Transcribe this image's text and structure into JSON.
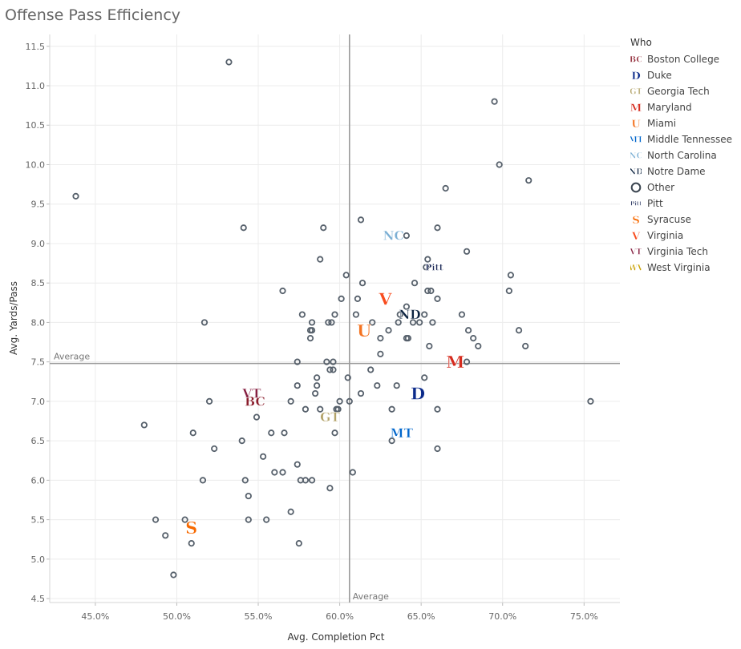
{
  "title": "Offense Pass Efficiency",
  "chart_data": {
    "type": "scatter",
    "title": "Offense Pass Efficiency",
    "xlabel": "Avg. Completion Pct",
    "ylabel": "Avg. Yards/Pass",
    "xlim": [
      0.422,
      0.772
    ],
    "ylim": [
      4.45,
      11.65
    ],
    "x_ticks": [
      0.45,
      0.5,
      0.55,
      0.6,
      0.65,
      0.7,
      0.75
    ],
    "x_tick_labels": [
      "45.0%",
      "50.0%",
      "55.0%",
      "60.0%",
      "65.0%",
      "70.0%",
      "75.0%"
    ],
    "y_ticks": [
      4.5,
      5.0,
      5.5,
      6.0,
      6.5,
      7.0,
      7.5,
      8.0,
      8.5,
      9.0,
      9.5,
      10.0,
      10.5,
      11.0,
      11.5
    ],
    "y_tick_labels": [
      "4.5",
      "5.0",
      "5.5",
      "6.0",
      "6.5",
      "7.0",
      "7.5",
      "8.0",
      "8.5",
      "9.0",
      "9.5",
      "10.0",
      "10.5",
      "11.0",
      "11.5"
    ],
    "reference_lines": {
      "x": {
        "value": 0.606,
        "label": "Average"
      },
      "y": {
        "value": 7.48,
        "label": "Average"
      }
    },
    "grid": true,
    "legend_title": "Who",
    "legend_position": "right",
    "legend": [
      {
        "name": "Boston College",
        "symbol": "BC",
        "color": "#8a1c2b"
      },
      {
        "name": "Duke",
        "symbol": "D",
        "color": "#0b2a8a"
      },
      {
        "name": "Georgia Tech",
        "symbol": "GT",
        "color": "#b3a369"
      },
      {
        "name": "Maryland",
        "symbol": "M",
        "color": "#d52b1e"
      },
      {
        "name": "Miami",
        "symbol": "U",
        "color": "#f47321"
      },
      {
        "name": "Middle Tennessee",
        "symbol": "MT",
        "color": "#0066cc"
      },
      {
        "name": "North Carolina",
        "symbol": "NC",
        "color": "#7bafd4"
      },
      {
        "name": "Notre Dame",
        "symbol": "ND",
        "color": "#0c2340"
      },
      {
        "name": "Other",
        "symbol": "circle",
        "color": "#3b4550"
      },
      {
        "name": "Pitt",
        "symbol": "Pitt",
        "color": "#1c2957"
      },
      {
        "name": "Syracuse",
        "symbol": "S",
        "color": "#f76900"
      },
      {
        "name": "Virginia",
        "symbol": "V",
        "color": "#f84c1e"
      },
      {
        "name": "Virginia Tech",
        "symbol": "VT",
        "color": "#861f41"
      },
      {
        "name": "West Virginia",
        "symbol": "WV",
        "color": "#c9a000"
      }
    ],
    "teams": [
      {
        "name": "Boston College",
        "x": 0.548,
        "y": 7.0
      },
      {
        "name": "Duke",
        "x": 0.648,
        "y": 7.1
      },
      {
        "name": "Georgia Tech",
        "x": 0.594,
        "y": 6.8
      },
      {
        "name": "Maryland",
        "x": 0.671,
        "y": 7.5
      },
      {
        "name": "Miami",
        "x": 0.615,
        "y": 7.9
      },
      {
        "name": "Middle Tennessee",
        "x": 0.638,
        "y": 6.6
      },
      {
        "name": "North Carolina",
        "x": 0.633,
        "y": 9.1
      },
      {
        "name": "Notre Dame",
        "x": 0.643,
        "y": 8.1
      },
      {
        "name": "Pitt",
        "x": 0.658,
        "y": 8.7
      },
      {
        "name": "Syracuse",
        "x": 0.509,
        "y": 5.4
      },
      {
        "name": "Virginia",
        "x": 0.628,
        "y": 8.3
      },
      {
        "name": "Virginia Tech",
        "x": 0.546,
        "y": 7.1
      }
    ],
    "other_points": [
      [
        0.532,
        11.3
      ],
      [
        0.438,
        9.6
      ],
      [
        0.541,
        9.2
      ],
      [
        0.59,
        9.2
      ],
      [
        0.613,
        9.3
      ],
      [
        0.641,
        9.1
      ],
      [
        0.66,
        9.2
      ],
      [
        0.695,
        10.8
      ],
      [
        0.698,
        10.0
      ],
      [
        0.716,
        9.8
      ],
      [
        0.665,
        9.7
      ],
      [
        0.678,
        8.9
      ],
      [
        0.588,
        8.8
      ],
      [
        0.653,
        8.7
      ],
      [
        0.654,
        8.8
      ],
      [
        0.705,
        8.6
      ],
      [
        0.704,
        8.4
      ],
      [
        0.604,
        8.6
      ],
      [
        0.646,
        8.5
      ],
      [
        0.565,
        8.4
      ],
      [
        0.614,
        8.5
      ],
      [
        0.654,
        8.4
      ],
      [
        0.656,
        8.4
      ],
      [
        0.66,
        8.3
      ],
      [
        0.601,
        8.3
      ],
      [
        0.611,
        8.3
      ],
      [
        0.641,
        8.2
      ],
      [
        0.577,
        8.1
      ],
      [
        0.597,
        8.1
      ],
      [
        0.61,
        8.1
      ],
      [
        0.637,
        8.1
      ],
      [
        0.652,
        8.1
      ],
      [
        0.675,
        8.1
      ],
      [
        0.517,
        8.0
      ],
      [
        0.583,
        8.0
      ],
      [
        0.593,
        8.0
      ],
      [
        0.595,
        8.0
      ],
      [
        0.62,
        8.0
      ],
      [
        0.636,
        8.0
      ],
      [
        0.645,
        8.0
      ],
      [
        0.649,
        8.0
      ],
      [
        0.657,
        8.0
      ],
      [
        0.583,
        7.9
      ],
      [
        0.582,
        7.9
      ],
      [
        0.63,
        7.9
      ],
      [
        0.679,
        7.9
      ],
      [
        0.71,
        7.9
      ],
      [
        0.582,
        7.8
      ],
      [
        0.625,
        7.8
      ],
      [
        0.641,
        7.8
      ],
      [
        0.642,
        7.8
      ],
      [
        0.682,
        7.8
      ],
      [
        0.655,
        7.7
      ],
      [
        0.685,
        7.7
      ],
      [
        0.714,
        7.7
      ],
      [
        0.625,
        7.6
      ],
      [
        0.574,
        7.5
      ],
      [
        0.592,
        7.5
      ],
      [
        0.596,
        7.5
      ],
      [
        0.678,
        7.5
      ],
      [
        0.594,
        7.4
      ],
      [
        0.596,
        7.4
      ],
      [
        0.619,
        7.4
      ],
      [
        0.586,
        7.3
      ],
      [
        0.605,
        7.3
      ],
      [
        0.652,
        7.3
      ],
      [
        0.574,
        7.2
      ],
      [
        0.586,
        7.2
      ],
      [
        0.623,
        7.2
      ],
      [
        0.635,
        7.2
      ],
      [
        0.52,
        7.0
      ],
      [
        0.57,
        7.0
      ],
      [
        0.6,
        7.0
      ],
      [
        0.606,
        7.0
      ],
      [
        0.585,
        7.1
      ],
      [
        0.613,
        7.1
      ],
      [
        0.754,
        7.0
      ],
      [
        0.579,
        6.9
      ],
      [
        0.588,
        6.9
      ],
      [
        0.598,
        6.9
      ],
      [
        0.599,
        6.9
      ],
      [
        0.632,
        6.9
      ],
      [
        0.66,
        6.9
      ],
      [
        0.549,
        6.8
      ],
      [
        0.48,
        6.7
      ],
      [
        0.51,
        6.6
      ],
      [
        0.558,
        6.6
      ],
      [
        0.566,
        6.6
      ],
      [
        0.597,
        6.6
      ],
      [
        0.54,
        6.5
      ],
      [
        0.632,
        6.5
      ],
      [
        0.523,
        6.4
      ],
      [
        0.66,
        6.4
      ],
      [
        0.553,
        6.3
      ],
      [
        0.574,
        6.2
      ],
      [
        0.56,
        6.1
      ],
      [
        0.565,
        6.1
      ],
      [
        0.608,
        6.1
      ],
      [
        0.516,
        6.0
      ],
      [
        0.542,
        6.0
      ],
      [
        0.576,
        6.0
      ],
      [
        0.579,
        6.0
      ],
      [
        0.583,
        6.0
      ],
      [
        0.594,
        5.9
      ],
      [
        0.544,
        5.8
      ],
      [
        0.57,
        5.6
      ],
      [
        0.487,
        5.5
      ],
      [
        0.505,
        5.5
      ],
      [
        0.544,
        5.5
      ],
      [
        0.555,
        5.5
      ],
      [
        0.493,
        5.3
      ],
      [
        0.575,
        5.2
      ],
      [
        0.509,
        5.2
      ],
      [
        0.498,
        4.8
      ]
    ]
  }
}
